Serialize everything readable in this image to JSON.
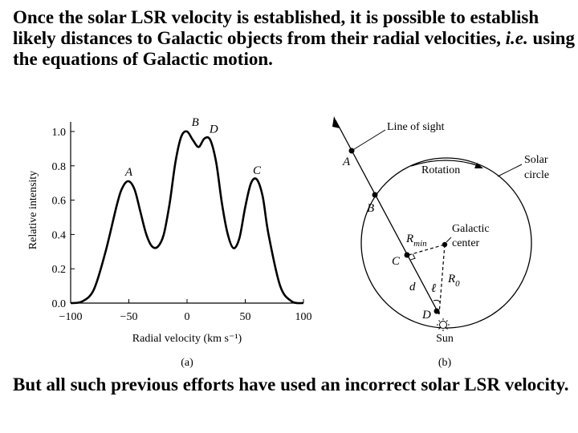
{
  "paragraphs": {
    "intro_a": "Once the solar LSR velocity is established, it is possible to establish likely distances to Galactic objects from their radial velocities,",
    "intro_ie": "i.e.",
    "intro_b": "using the equations of Galactic motion.",
    "closing": "But all such previous efforts have used an incorrect solar LSR velocity."
  },
  "figure_a": {
    "panel_label": "(a)",
    "chart_data": {
      "type": "line",
      "xlabel": "Radial velocity (km s⁻¹)",
      "ylabel": "Relative intensity",
      "xlim": [
        -100,
        100
      ],
      "ylim": [
        0,
        1.1
      ],
      "x_ticks": [
        -100,
        -50,
        0,
        50,
        100
      ],
      "y_ticks": [
        0.0,
        0.2,
        0.4,
        0.6,
        0.8,
        1.0
      ],
      "x_tick_labels": [
        "−100",
        "−50",
        "0",
        "50",
        "100"
      ],
      "y_tick_labels": [
        "0.0",
        "0.2",
        "0.4",
        "0.6",
        "0.8",
        "1.0"
      ],
      "x": [
        -100,
        -90,
        -80,
        -70,
        -60,
        -55,
        -50,
        -45,
        -40,
        -35,
        -30,
        -25,
        -20,
        -15,
        -10,
        -5,
        0,
        5,
        10,
        15,
        20,
        25,
        30,
        35,
        40,
        45,
        50,
        55,
        60,
        65,
        70,
        80,
        90,
        100
      ],
      "y": [
        0.0,
        0.01,
        0.08,
        0.3,
        0.58,
        0.68,
        0.71,
        0.66,
        0.53,
        0.4,
        0.33,
        0.33,
        0.4,
        0.58,
        0.82,
        0.97,
        1.0,
        0.95,
        0.91,
        0.96,
        0.95,
        0.82,
        0.58,
        0.4,
        0.32,
        0.38,
        0.56,
        0.7,
        0.72,
        0.62,
        0.4,
        0.1,
        0.01,
        0.0
      ],
      "peak_labels": [
        {
          "label": "A",
          "x": -50,
          "y": 0.71
        },
        {
          "label": "B",
          "x": 7,
          "y": 1.0
        },
        {
          "label": "D",
          "x": 23,
          "y": 0.96
        },
        {
          "label": "C",
          "x": 60,
          "y": 0.72
        }
      ]
    }
  },
  "figure_b": {
    "panel_label": "(b)",
    "line_of_sight": "Line of sight",
    "rotation": "Rotation",
    "solar_circle": [
      "Solar",
      "circle"
    ],
    "galactic_center": [
      "Galactic",
      "center"
    ],
    "point_labels": {
      "A": "A",
      "B": "B",
      "C": "C",
      "D": "D"
    },
    "rmin_main": "R",
    "rmin_sub": "min",
    "r0_main": "R",
    "r0_sub": "0",
    "distance": "d",
    "longitude": "ℓ",
    "sun": "Sun"
  }
}
